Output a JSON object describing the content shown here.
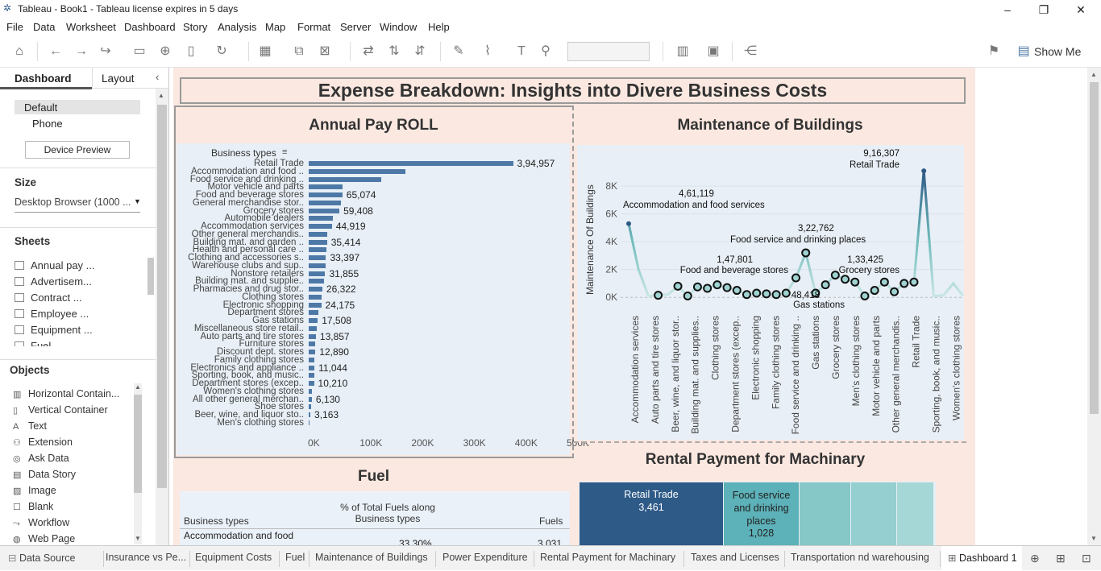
{
  "window": {
    "title": "Tableau - Book1 - Tableau license expires in 5 days",
    "controls": [
      "–",
      "❐",
      "✕"
    ]
  },
  "menu": [
    "File",
    "Data",
    "Worksheet",
    "Dashboard",
    "Story",
    "Analysis",
    "Map",
    "Format",
    "Server",
    "Window",
    "Help"
  ],
  "toolbar": {
    "show_me": "Show Me"
  },
  "left": {
    "tab_dashboard": "Dashboard",
    "tab_layout": "Layout",
    "device_default": "Default",
    "device_phone": "Phone",
    "device_preview": "Device Preview",
    "size_label": "Size",
    "size_value": "Desktop Browser (1000 ...",
    "sheets_label": "Sheets",
    "sheets": [
      "Annual pay ...",
      "Advertisem...",
      "Contract ...",
      "Employee ...",
      "Equipment ...",
      "Fuel"
    ],
    "objects_label": "Objects",
    "objects": [
      "Horizontal Contain...",
      "Vertical Container",
      "Text",
      "Extension",
      "Ask Data",
      "Data Story",
      "Image",
      "Blank",
      "Workflow",
      "Web Page"
    ]
  },
  "dashboard": {
    "title": "Expense Breakdown: Insights into Divere Business Costs",
    "payroll": {
      "title": "Annual Pay ROLL",
      "header": "Business types",
      "axis": [
        "0K",
        "100K",
        "200K",
        "300K",
        "400K",
        "500K"
      ]
    },
    "maintenance": {
      "title": "Maintenance of Buildings",
      "ylabel": "Maintenance Of Buildings",
      "yticks": [
        "0K",
        "2K",
        "4K",
        "6K",
        "8K"
      ],
      "annotations": [
        {
          "value": "9,16,307",
          "label": "Retail Trade"
        },
        {
          "value": "4,61,119",
          "label": "Accommodation and food services"
        },
        {
          "value": "3,22,762",
          "label": "Food service and drinking places"
        },
        {
          "value": "1,47,801",
          "label": "Food and beverage stores"
        },
        {
          "value": "1,33,425",
          "label": "Grocery stores"
        },
        {
          "value": "48,418",
          "label": "Gas stations"
        }
      ]
    },
    "fuel": {
      "title": "Fuel",
      "col_measure": "% of Total Fuels along Business types",
      "col_type": "Business types",
      "col_fuels": "Fuels",
      "row_type": "Accommodation and food",
      "row_pct": "33.30%",
      "row_fuels": "3,031"
    },
    "rental": {
      "title": "Rental Payment for Machinary",
      "cell1_label": "Retail Trade",
      "cell1_value": "3,461",
      "cell2_label": "Food service and drinking places",
      "cell2_value": "1,028"
    }
  },
  "chart_data": [
    {
      "type": "bar",
      "title": "Annual Pay ROLL",
      "categories": [
        "Retail Trade",
        "Accommodation and food ..",
        "Food service and drinking ..",
        "Motor vehicle and parts",
        "Food and beverage stores",
        "General merchandise stor..",
        "Grocery stores",
        "Automobile dealers",
        "Accommodation services",
        "Other general merchandis..",
        "Building mat. and garden ..",
        "Health and personal care ..",
        "Clothing and accessories s..",
        "Warehouse clubs and sup..",
        "Nonstore retailers",
        "Building mat. and supplie..",
        "Pharmacies and drug stor..",
        "Clothing stores",
        "Electronic shopping",
        "Department stores",
        "Gas stations",
        "Miscellaneous store retail..",
        "Auto parts and tire stores",
        "Furniture stores",
        "Discount dept. stores",
        "Family clothing stores",
        "Electronics and appliance ..",
        "Sporting, book, and music..",
        "Department stores (excep..",
        "Women's clothing stores",
        "All other general merchan..",
        "Shoe stores",
        "Beer, wine, and liquor sto..",
        "Men's clothing stores"
      ],
      "values": [
        394957,
        187000,
        140000,
        66000,
        65074,
        62000,
        59408,
        46000,
        44919,
        36500,
        35414,
        34500,
        33397,
        32500,
        31855,
        29000,
        26322,
        25500,
        24175,
        19000,
        17508,
        15500,
        13857,
        13200,
        12890,
        11500,
        11044,
        10600,
        10210,
        6500,
        6130,
        4500,
        3163,
        1500
      ],
      "labels": [
        "3,94,957",
        "",
        "",
        "",
        "65,074",
        "",
        "59,408",
        "",
        "44,919",
        "",
        "35,414",
        "",
        "33,397",
        "",
        "31,855",
        "",
        "26,322",
        "",
        "24,175",
        "",
        "17,508",
        "",
        "13,857",
        "",
        "12,890",
        "",
        "11,044",
        "",
        "10,210",
        "",
        "6,130",
        "",
        "3,163",
        ""
      ],
      "xlim": [
        0,
        500000
      ]
    },
    {
      "type": "line",
      "title": "Maintenance of Buildings",
      "ylabel": "Maintenance Of Buildings",
      "xlabels": [
        "Accommodation services",
        "Auto parts and tire stores",
        "Beer, wine, and liquor stor..",
        "Building mat. and supplies..",
        "Clothing stores",
        "Department stores (excep..",
        "Electronic shopping",
        "Family clothing stores",
        "Food service and drinking ..",
        "Gas stations",
        "Grocery stores",
        "Men's clothing stores",
        "Motor vehicle and parts",
        "Other general merchandis..",
        "Retail Trade",
        "Sporting, book, and music..",
        "Women's clothing stores"
      ],
      "values": [
        5300,
        2000,
        100,
        150,
        200,
        800,
        100,
        750,
        650,
        900,
        700,
        500,
        200,
        300,
        250,
        200,
        300,
        1400,
        3200,
        300,
        900,
        1600,
        1300,
        1100,
        100,
        500,
        1100,
        400,
        1000,
        1100,
        9100,
        100,
        150,
        1000,
        100
      ],
      "ylim": [
        -800,
        9800
      ]
    }
  ]
}
